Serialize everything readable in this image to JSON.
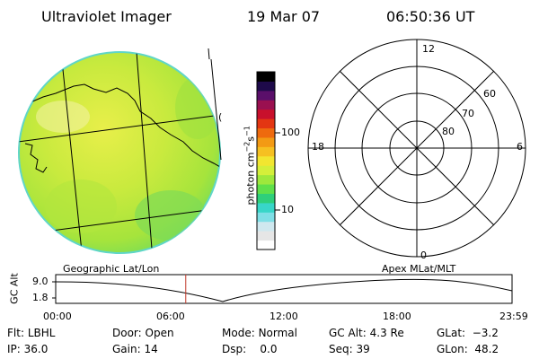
{
  "header": {
    "instrument": "Ultraviolet Imager",
    "date": "19 Mar 07",
    "time": "06:50:36 UT"
  },
  "colorbar": {
    "label": "photon cm",
    "label_exp1": "−2",
    "label_s": "s",
    "label_exp2": "−1",
    "ticks": [
      "100",
      "10"
    ],
    "colors": [
      "#ffffff",
      "#e6e6e6",
      "#cfe8ef",
      "#7fdfe6",
      "#38d6c8",
      "#2ecf7a",
      "#5fe04a",
      "#9ee83c",
      "#d4ef3a",
      "#f2e630",
      "#f6c021",
      "#f39a14",
      "#ee6a0e",
      "#e33612",
      "#c8102c",
      "#9a1050",
      "#5a0f6a",
      "#1e0a4a",
      "#000000"
    ]
  },
  "polar_plot": {
    "mlt_labels": {
      "top": "12",
      "bottom": "0",
      "left": "18",
      "right": "6"
    },
    "lat_labels": [
      "60",
      "70",
      "80"
    ]
  },
  "globe_marker": "(",
  "timeline": {
    "left_title": "Geographic Lat/Lon",
    "right_title": "Apex  MLat/MLT",
    "axis_label": "GC Alt",
    "y_ticks": [
      "9.0",
      "1.8"
    ],
    "x_ticks": [
      "00:00",
      "06:00",
      "12:00",
      "18:00",
      "23:59"
    ],
    "current_time_marker_hours": 6.84,
    "marker_color": "#c0392b"
  },
  "footer": {
    "row1": [
      {
        "label": "Flt:",
        "value": "LBHL"
      },
      {
        "label": "Door:",
        "value": "Open"
      },
      {
        "label": "Mode:",
        "value": "Normal"
      },
      {
        "label": "GC Alt:",
        "value": "4.3 Re"
      },
      {
        "label": "GLat:",
        "value": "−3.2"
      }
    ],
    "row2": [
      {
        "label": "IP:",
        "value": "36.0"
      },
      {
        "label": "Gain:",
        "value": "14"
      },
      {
        "label": "Dsp:",
        "value": "0.0"
      },
      {
        "label": "Seq:",
        "value": "39"
      },
      {
        "label": "GLon:",
        "value": "48.2"
      }
    ]
  }
}
